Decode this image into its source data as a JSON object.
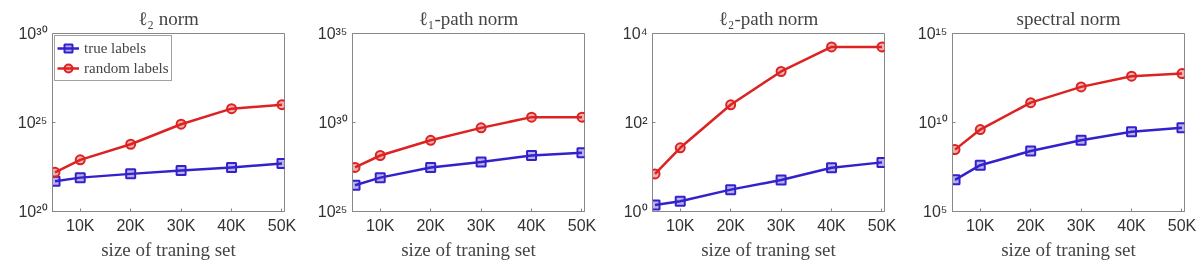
{
  "chart_data": [
    {
      "type": "line",
      "title": "ℓ₂ norm",
      "xlabel": "size of traning set",
      "log": "y",
      "grid": false,
      "legend": "top left",
      "x": [
        5000,
        10000,
        20000,
        30000,
        40000,
        50000
      ],
      "xlim": [
        4500,
        50500
      ],
      "xticks": [
        {
          "value": 10000,
          "label": "10K"
        },
        {
          "value": 20000,
          "label": "20K"
        },
        {
          "value": 30000,
          "label": "30K"
        },
        {
          "value": 40000,
          "label": "40K"
        },
        {
          "value": 50000,
          "label": "50K"
        }
      ],
      "ylim": [
        1e+20,
        1e+30
      ],
      "yticks": [
        {
          "value": 1e+20,
          "label": "10²⁰"
        },
        {
          "value": 1e+25,
          "label": "10²⁵"
        },
        {
          "value": 1e+30,
          "label": "10³⁰"
        }
      ],
      "series": [
        {
          "name": "true labels",
          "color": "#3322cc",
          "marker": "square",
          "values": [
            5e+21,
            8e+21,
            1.3e+22,
            2e+22,
            3e+22,
            5e+22
          ]
        },
        {
          "name": "random labels",
          "color": "#dd2222",
          "marker": "circle",
          "values": [
            1.6e+22,
            8e+22,
            6e+23,
            8e+24,
            6e+25,
            1e+26
          ]
        }
      ]
    },
    {
      "type": "line",
      "title": "ℓ₁-path norm",
      "xlabel": "size of traning set",
      "log": "y",
      "grid": false,
      "x": [
        5000,
        10000,
        20000,
        30000,
        40000,
        50000
      ],
      "xlim": [
        4500,
        50500
      ],
      "xticks": [
        {
          "value": 10000,
          "label": "10K"
        },
        {
          "value": 20000,
          "label": "20K"
        },
        {
          "value": 30000,
          "label": "30K"
        },
        {
          "value": 40000,
          "label": "40K"
        },
        {
          "value": 50000,
          "label": "50K"
        }
      ],
      "ylim": [
        1e+25,
        1e+35
      ],
      "yticks": [
        {
          "value": 1e+25,
          "label": "10²⁵"
        },
        {
          "value": 1e+30,
          "label": "10³⁰"
        },
        {
          "value": 1e+35,
          "label": "10³⁵"
        }
      ],
      "series": [
        {
          "color": "#3322cc",
          "marker": "square",
          "values": [
            3e+26,
            8e+26,
            3e+27,
            6e+27,
            1.4e+28,
            2e+28
          ]
        },
        {
          "color": "#dd2222",
          "marker": "circle",
          "values": [
            3e+27,
            1.4e+28,
            1e+29,
            5e+29,
            2e+30,
            2e+30
          ]
        }
      ]
    },
    {
      "type": "line",
      "title": "ℓ₂-path norm",
      "xlabel": "size of traning set",
      "log": "y",
      "grid": false,
      "x": [
        5000,
        10000,
        20000,
        30000,
        40000,
        50000
      ],
      "xlim": [
        4500,
        50500
      ],
      "xticks": [
        {
          "value": 10000,
          "label": "10K"
        },
        {
          "value": 20000,
          "label": "20K"
        },
        {
          "value": 30000,
          "label": "30K"
        },
        {
          "value": 40000,
          "label": "40K"
        },
        {
          "value": 50000,
          "label": "50K"
        }
      ],
      "ylim": [
        1,
        10000
      ],
      "yticks": [
        {
          "value": 1,
          "label": "10⁰"
        },
        {
          "value": 100,
          "label": "10²"
        },
        {
          "value": 10000,
          "label": "10⁴"
        }
      ],
      "series": [
        {
          "color": "#3322cc",
          "marker": "square",
          "values": [
            1.4,
            1.7,
            3.1,
            5.1,
            9.6,
            12.7
          ]
        },
        {
          "color": "#dd2222",
          "marker": "circle",
          "values": [
            7,
            27,
            250,
            1400,
            5000,
            5000
          ]
        }
      ]
    },
    {
      "type": "line",
      "title": "spectral norm",
      "xlabel": "size of traning set",
      "log": "y",
      "grid": false,
      "x": [
        5000,
        10000,
        20000,
        30000,
        40000,
        50000
      ],
      "xlim": [
        4500,
        50500
      ],
      "xticks": [
        {
          "value": 10000,
          "label": "10K"
        },
        {
          "value": 20000,
          "label": "20K"
        },
        {
          "value": 30000,
          "label": "30K"
        },
        {
          "value": 40000,
          "label": "40K"
        },
        {
          "value": 50000,
          "label": "50K"
        }
      ],
      "ylim": [
        100000.0,
        1000000000000000.0
      ],
      "yticks": [
        {
          "value": 100000.0,
          "label": "10⁵"
        },
        {
          "value": 10000000000.0,
          "label": "10¹⁰"
        },
        {
          "value": 1000000000000000.0,
          "label": "10¹⁵"
        }
      ],
      "series": [
        {
          "color": "#3322cc",
          "marker": "square",
          "values": [
            6000000.0,
            40000000.0,
            250000000.0,
            1000000000.0,
            3000000000.0,
            5000000000.0
          ]
        },
        {
          "color": "#dd2222",
          "marker": "circle",
          "values": [
            300000000.0,
            4000000000.0,
            130000000000.0,
            1000000000000.0,
            4000000000000.0,
            5600000000000.0
          ]
        }
      ]
    }
  ]
}
